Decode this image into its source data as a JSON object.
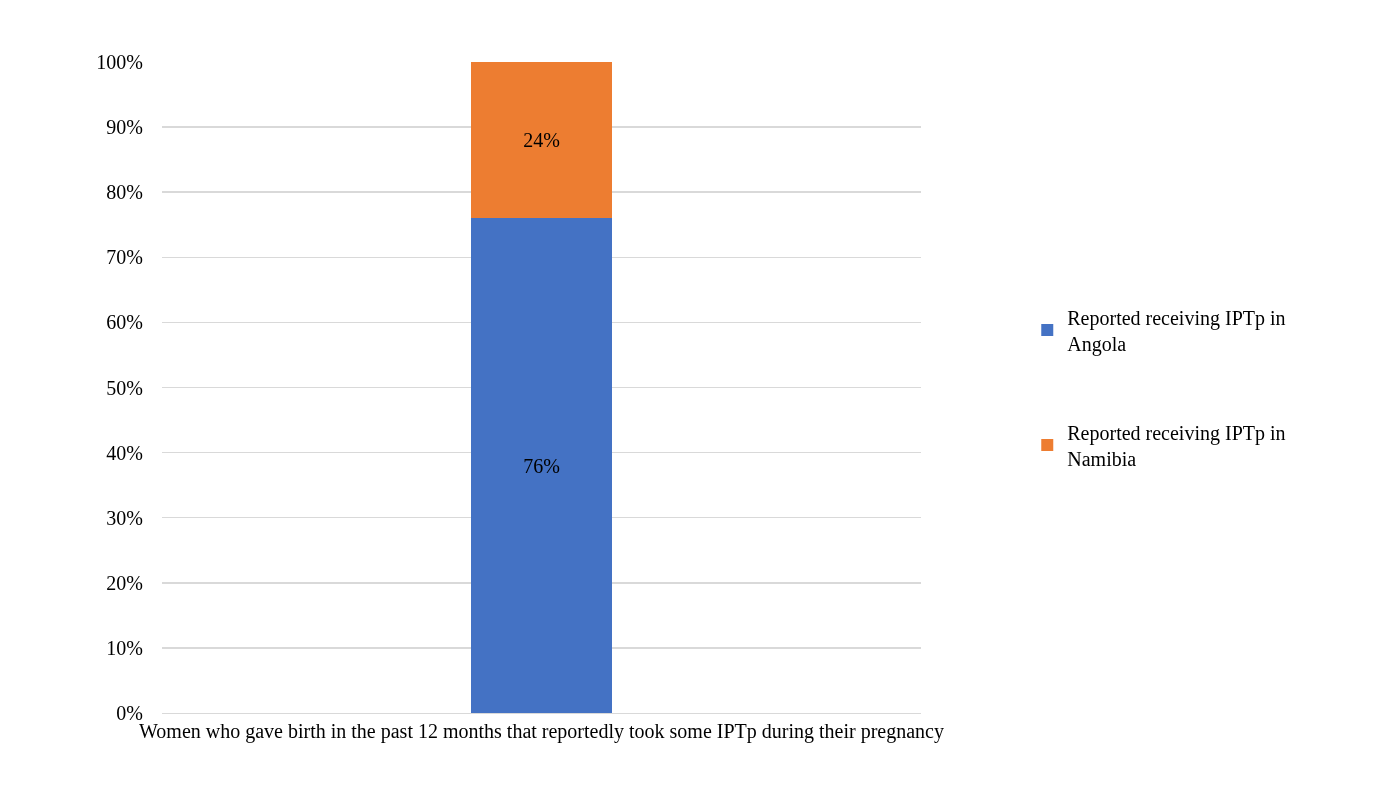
{
  "chart_data": {
    "type": "bar",
    "stacked": true,
    "categories": [
      "Women who gave birth in the past 12 months that reportedly took some IPTp during their pregnancy"
    ],
    "series": [
      {
        "name": "Reported receiving IPTp in Angola",
        "color": "#4472c4",
        "values": [
          76
        ],
        "value_labels": [
          "76%"
        ]
      },
      {
        "name": "Reported receiving IPTp in Namibia",
        "color": "#ed7d31",
        "values": [
          24
        ],
        "value_labels": [
          "24%"
        ]
      }
    ],
    "ylim": [
      0,
      100
    ],
    "yticks": [
      {
        "value": 0,
        "label": "0%"
      },
      {
        "value": 10,
        "label": "10%"
      },
      {
        "value": 20,
        "label": "20%"
      },
      {
        "value": 30,
        "label": "30%"
      },
      {
        "value": 40,
        "label": "40%"
      },
      {
        "value": 50,
        "label": "50%"
      },
      {
        "value": 60,
        "label": "60%"
      },
      {
        "value": 70,
        "label": "70%"
      },
      {
        "value": 80,
        "label": "80%"
      },
      {
        "value": 90,
        "label": "90%"
      },
      {
        "value": 100,
        "label": "100%"
      }
    ],
    "grid": "y",
    "legend": "right"
  }
}
